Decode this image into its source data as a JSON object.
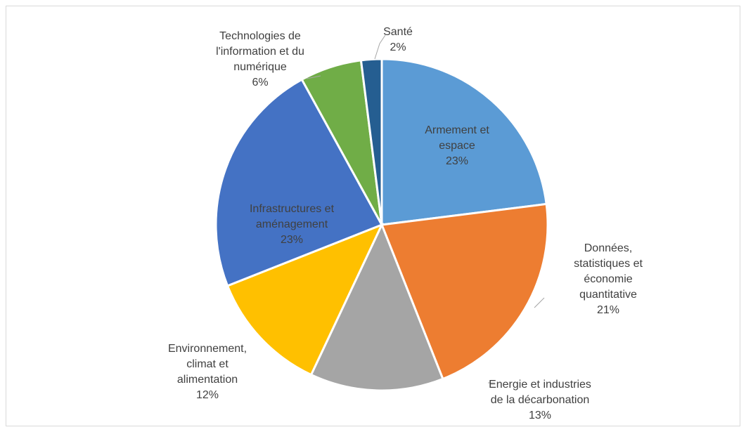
{
  "chart_data": {
    "type": "pie",
    "categories": [
      "Armement et espace",
      "Données, statistiques et économie quantitative",
      "Energie et industries de la décarbonation",
      "Environnement, climat et alimentation",
      "Infrastructures et aménagement",
      "Technologies de l'information et du numérique",
      "Santé"
    ],
    "values": [
      23,
      21,
      13,
      12,
      23,
      6,
      2
    ],
    "value_labels": [
      "23%",
      "21%",
      "13%",
      "12%",
      "23%",
      "6%",
      "2%"
    ],
    "colors": [
      "#5b9bd5",
      "#ed7d31",
      "#a5a5a5",
      "#ffc000",
      "#4472c4",
      "#70ad47",
      "#255e91"
    ]
  }
}
